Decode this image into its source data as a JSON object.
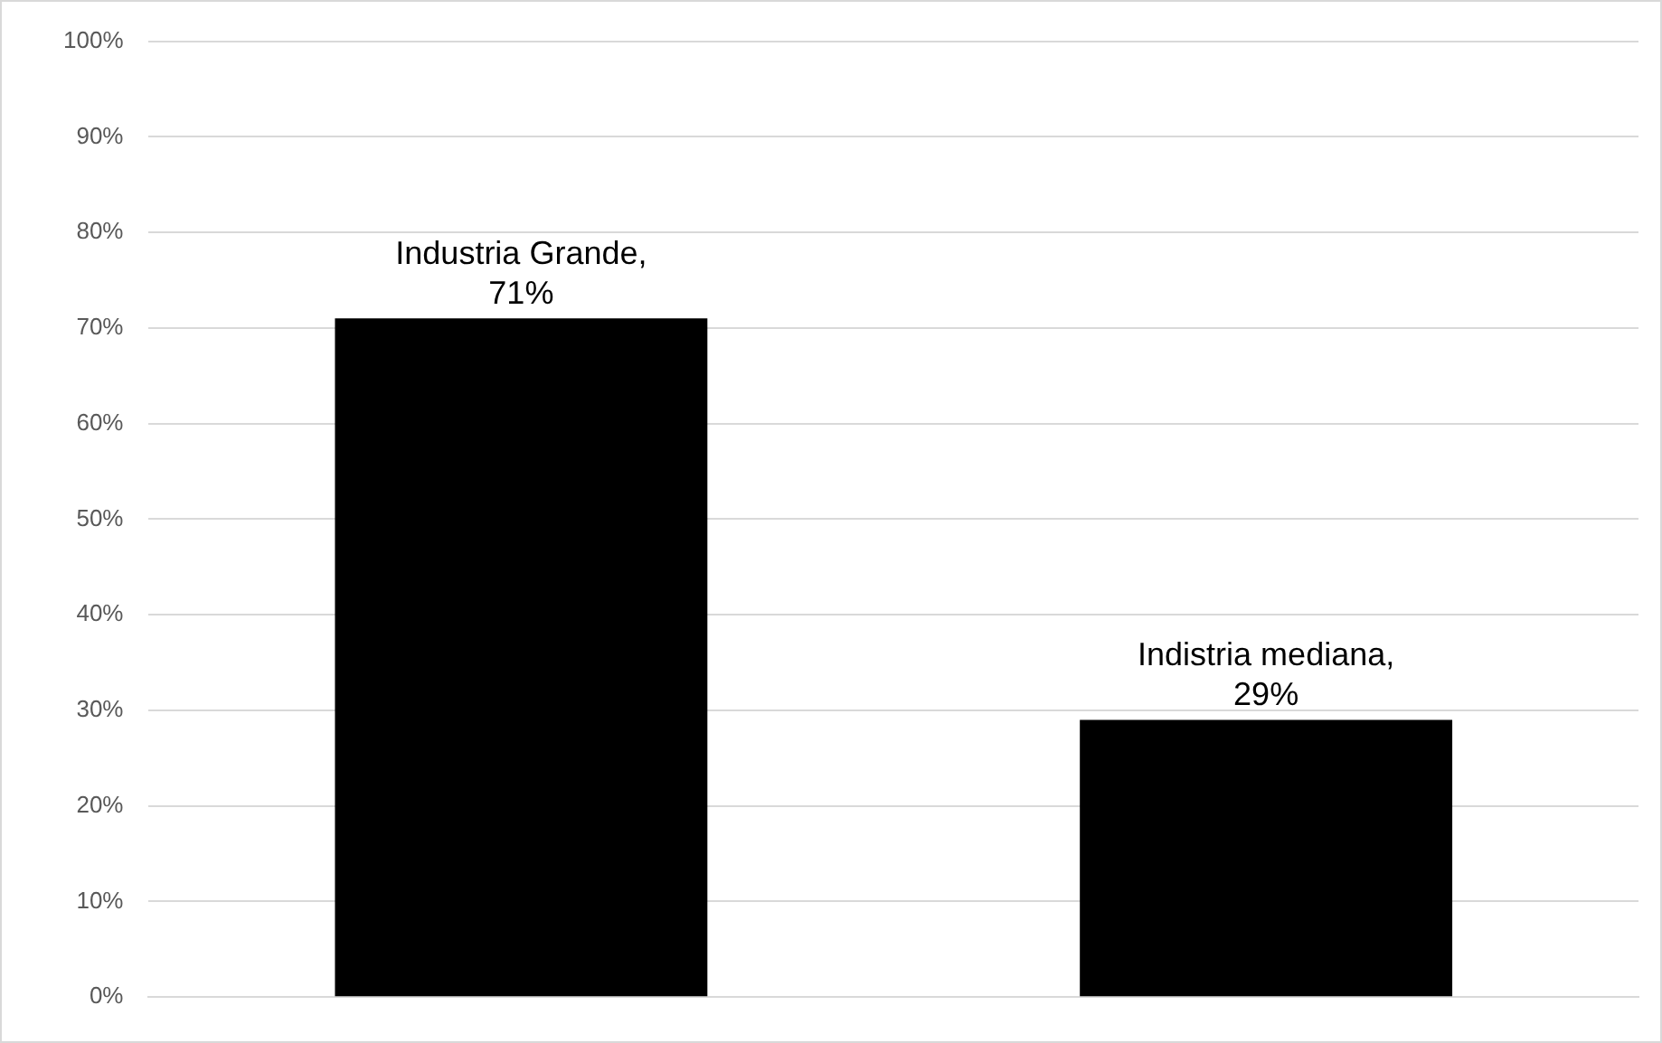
{
  "chart_data": {
    "type": "bar",
    "categories": [
      null,
      null
    ],
    "series": [
      {
        "color": "#000000",
        "values": [
          71,
          29
        ]
      }
    ],
    "value_labels": [
      "Industria Grande, 71%",
      "Indistria mediana, 29%"
    ],
    "ylim": [
      0,
      100
    ],
    "yticks": [
      {
        "value": 0,
        "label": "0%"
      },
      {
        "value": 10,
        "label": "10%"
      },
      {
        "value": 20,
        "label": "20%"
      },
      {
        "value": 30,
        "label": "30%"
      },
      {
        "value": 40,
        "label": "40%"
      },
      {
        "value": 50,
        "label": "50%"
      },
      {
        "value": 60,
        "label": "60%"
      },
      {
        "value": 70,
        "label": "70%"
      },
      {
        "value": 80,
        "label": "80%"
      },
      {
        "value": 90,
        "label": "90%"
      },
      {
        "value": 100,
        "label": "100%"
      }
    ],
    "grid": "y",
    "legend": false
  }
}
